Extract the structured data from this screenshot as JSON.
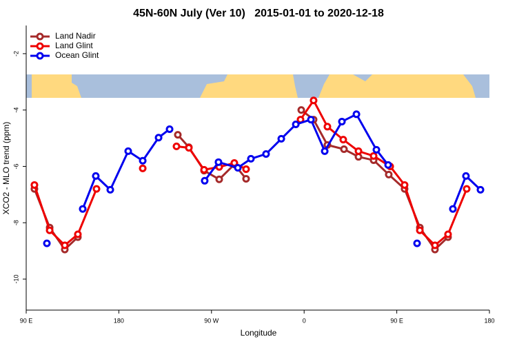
{
  "chart_data": {
    "type": "line",
    "title": "45N-60N July (Ver 10)   2015-01-01 to 2020-12-18",
    "xlabel": "Longitude",
    "ylabel": "XCO2 - MLO trend (ppm)",
    "xlim": [
      90,
      540
    ],
    "ylim": [
      -11.1,
      -1.0
    ],
    "xticks": [
      {
        "value": 90,
        "label": "90 E"
      },
      180,
      {
        "value": 270,
        "label": "90 W"
      },
      {
        "value": 360,
        "label": "0"
      },
      {
        "value": 450,
        "label": "90 E"
      },
      {
        "value": 540,
        "label": "180"
      }
    ],
    "yticks": [
      -2,
      -4,
      -6,
      -8,
      -10
    ],
    "legend": "top-left",
    "series": [
      {
        "name": "Land Nadir",
        "color": "#a52a2a",
        "x": [
          98.0,
          112.8,
          127.5,
          140.2,
          null,
          237.3,
          248.0,
          262.8,
          277.5,
          292.2,
          303.6,
          null,
          357.2,
          369.2,
          382.6,
          398.7,
          412.8,
          427.5,
          442.2,
          457.6,
          472.4,
          487.1,
          499.8
        ],
        "values": [
          -6.8,
          -8.17,
          -8.95,
          -8.51,
          null,
          -4.88,
          -5.32,
          -6.15,
          -6.46,
          -5.93,
          -6.44,
          null,
          -4.0,
          -4.34,
          -5.24,
          -5.39,
          -5.66,
          -5.78,
          -6.29,
          -6.8,
          -8.17,
          -8.95,
          -8.51
        ]
      },
      {
        "name": "Land Glint",
        "color": "#ee0000",
        "x": [
          98.0,
          112.8,
          127.5,
          140.2,
          158.3,
          null,
          203.2,
          null,
          236.0,
          248.0,
          262.8,
          277.5,
          292.2,
          303.6,
          null,
          356.5,
          369.2,
          382.6,
          398.0,
          412.8,
          427.5,
          443.6,
          457.6,
          472.4,
          487.1,
          499.8,
          517.9
        ],
        "values": [
          -6.66,
          -8.27,
          -8.8,
          -8.41,
          -6.8,
          null,
          -6.07,
          null,
          -5.29,
          -5.34,
          -6.12,
          -6.02,
          -5.88,
          -6.1,
          null,
          -4.34,
          -3.66,
          -4.59,
          -5.05,
          -5.46,
          -5.63,
          -6.0,
          -6.66,
          -8.27,
          -8.8,
          -8.41,
          -6.8
        ]
      },
      {
        "name": "Ocean Glint",
        "color": "#0000ee",
        "x": [
          110.1,
          null,
          144.9,
          157.6,
          171.7,
          189.1,
          203.2,
          218.6,
          229.3,
          null,
          263.4,
          276.8,
          295.6,
          308.3,
          323.0,
          337.8,
          351.9,
          366.6,
          380.0,
          396.7,
          410.8,
          430.2,
          441.6,
          null,
          469.7,
          null,
          504.5,
          517.2,
          531.3
        ],
        "values": [
          -8.73,
          null,
          -7.51,
          -6.34,
          -6.83,
          -5.46,
          -5.8,
          -4.98,
          -4.68,
          null,
          -6.51,
          -5.85,
          -6.05,
          -5.73,
          -5.56,
          -5.02,
          -4.51,
          -4.34,
          -5.46,
          -4.41,
          -4.15,
          -5.41,
          -5.95,
          null,
          -8.73,
          null,
          -7.51,
          -6.34,
          -6.83
        ]
      }
    ]
  }
}
